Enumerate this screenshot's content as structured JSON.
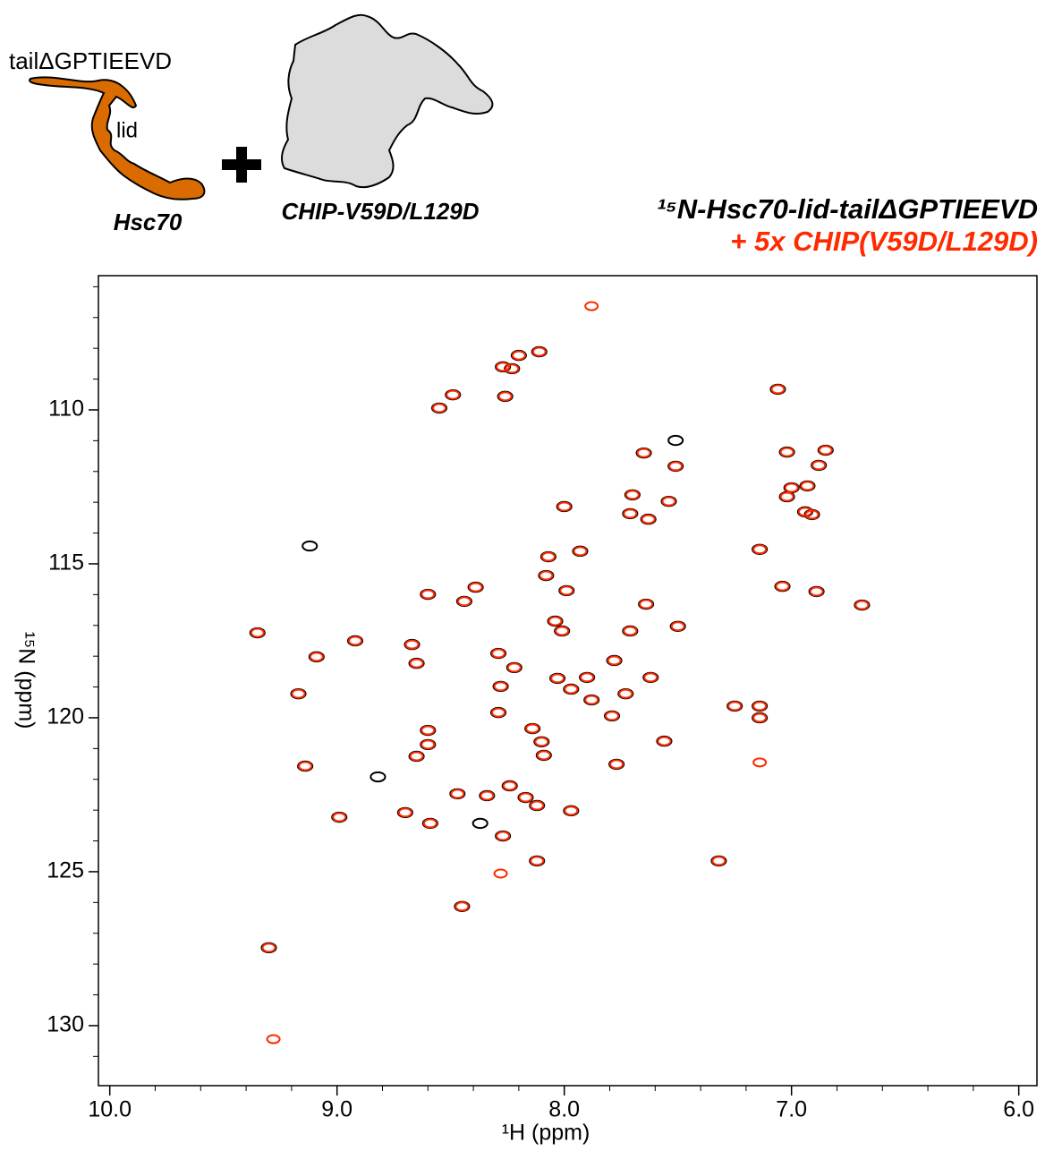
{
  "chart_data": {
    "type": "scatter",
    "annotations": {
      "tail": "tailΔGPTIEEVD",
      "lid": "lid",
      "hsc70": "Hsc70",
      "chip": "CHIP-V59D/L129D"
    },
    "xlabel": "¹H (ppm)",
    "ylabel": "¹⁵N (ppm)",
    "xlim": [
      10.05,
      5.92
    ],
    "ylim": [
      131.95,
      105.64
    ],
    "xticks": [
      {
        "value": 10,
        "label": "10.0"
      },
      {
        "value": 9,
        "label": "9.0"
      },
      {
        "value": 8,
        "label": "8.0"
      },
      {
        "value": 7,
        "label": "7.0"
      },
      {
        "value": 6,
        "label": "6.0"
      }
    ],
    "xminorticks": [
      9.8,
      9.6,
      9.4,
      9.2,
      8.8,
      8.6,
      8.4,
      8.2,
      7.8,
      7.6,
      7.4,
      7.2,
      6.8,
      6.6,
      6.4,
      6.2
    ],
    "yticks": [
      110,
      115,
      120,
      125,
      130
    ],
    "yminorticks": [
      106,
      107,
      108,
      109,
      111,
      112,
      113,
      114,
      116,
      117,
      118,
      119,
      121,
      122,
      123,
      124,
      126,
      127,
      128,
      129,
      131
    ],
    "series": [
      {
        "name": "¹⁵N-Hsc70-lid-tailΔGPTIEEVD",
        "color": "#000000",
        "x": [
          8.11,
          8.2,
          8.27,
          8.23,
          8.49,
          8.55,
          8.26,
          7.06,
          7.51,
          7.02,
          6.85,
          7.65,
          7.51,
          6.88,
          7.7,
          7.0,
          6.93,
          7.54,
          7.71,
          7.63,
          8.0,
          7.02,
          6.94,
          6.91,
          9.12,
          8.07,
          7.93,
          7.14,
          8.08,
          8.39,
          7.99,
          8.6,
          8.44,
          7.04,
          6.89,
          7.64,
          6.69,
          8.04,
          8.01,
          7.71,
          7.5,
          9.35,
          8.92,
          8.67,
          9.09,
          8.65,
          8.29,
          7.78,
          8.22,
          8.03,
          7.9,
          7.73,
          7.62,
          8.28,
          7.97,
          9.17,
          7.88,
          8.29,
          8.14,
          7.79,
          7.14,
          7.25,
          7.14,
          8.6,
          8.6,
          8.1,
          7.56,
          8.65,
          8.09,
          9.14,
          7.77,
          8.82,
          8.24,
          8.47,
          8.34,
          8.17,
          8.12,
          7.97,
          8.99,
          8.7,
          8.59,
          8.27,
          8.12,
          7.32,
          8.45,
          9.3,
          8.37
        ],
        "values": [
          108.11,
          108.23,
          108.6,
          108.66,
          109.51,
          109.94,
          109.56,
          109.33,
          110.99,
          111.37,
          111.31,
          111.4,
          111.83,
          111.8,
          112.76,
          112.53,
          112.47,
          112.97,
          113.37,
          113.55,
          113.14,
          112.82,
          113.31,
          113.4,
          114.42,
          114.77,
          114.59,
          114.53,
          115.38,
          115.76,
          115.87,
          115.99,
          116.22,
          115.73,
          115.9,
          116.31,
          116.34,
          116.86,
          117.18,
          117.18,
          117.03,
          117.24,
          117.5,
          117.62,
          118.02,
          118.23,
          117.91,
          118.14,
          118.37,
          118.72,
          118.69,
          119.22,
          118.69,
          118.98,
          119.07,
          119.22,
          119.42,
          119.83,
          120.35,
          119.94,
          119.62,
          119.62,
          120.0,
          120.41,
          120.87,
          120.78,
          120.76,
          121.25,
          121.22,
          121.57,
          121.51,
          121.92,
          122.21,
          122.47,
          122.53,
          122.59,
          122.85,
          123.02,
          123.23,
          123.08,
          123.43,
          123.84,
          124.65,
          124.65,
          126.13,
          127.47,
          123.43
        ]
      },
      {
        "name": "+ 5x CHIP(V59D/L129D)",
        "color": "#ff2a00",
        "x": [
          7.88,
          8.11,
          8.2,
          8.27,
          8.23,
          8.49,
          8.55,
          8.26,
          7.06,
          7.02,
          6.85,
          7.65,
          7.51,
          6.88,
          7.7,
          7.0,
          6.93,
          7.54,
          7.71,
          7.63,
          8.0,
          7.02,
          6.94,
          6.91,
          8.07,
          7.93,
          7.14,
          8.08,
          8.39,
          7.99,
          8.6,
          8.44,
          7.04,
          6.89,
          7.64,
          6.69,
          8.04,
          8.01,
          7.71,
          7.5,
          9.35,
          8.92,
          8.67,
          9.09,
          8.65,
          8.29,
          7.78,
          8.22,
          8.03,
          7.9,
          7.73,
          7.62,
          8.28,
          7.97,
          9.17,
          7.88,
          8.29,
          8.14,
          7.79,
          7.14,
          7.25,
          7.14,
          8.6,
          8.6,
          8.1,
          7.56,
          8.65,
          8.09,
          9.14,
          7.77,
          7.14,
          8.24,
          8.47,
          8.34,
          8.17,
          8.12,
          7.97,
          8.99,
          8.7,
          8.59,
          8.27,
          8.12,
          7.32,
          8.28,
          8.45,
          9.3,
          9.28
        ],
        "values": [
          106.63,
          108.11,
          108.23,
          108.6,
          108.66,
          109.51,
          109.94,
          109.56,
          109.33,
          111.37,
          111.31,
          111.4,
          111.83,
          111.8,
          112.76,
          112.53,
          112.47,
          112.97,
          113.37,
          113.55,
          113.14,
          112.82,
          113.31,
          113.4,
          114.77,
          114.59,
          114.53,
          115.38,
          115.76,
          115.87,
          115.99,
          116.22,
          115.73,
          115.9,
          116.31,
          116.34,
          116.86,
          117.18,
          117.18,
          117.03,
          117.24,
          117.5,
          117.62,
          118.02,
          118.23,
          117.91,
          118.14,
          118.37,
          118.72,
          118.69,
          119.22,
          118.69,
          118.98,
          119.07,
          119.22,
          119.42,
          119.83,
          120.35,
          119.94,
          119.62,
          119.62,
          120.0,
          120.41,
          120.87,
          120.78,
          120.76,
          121.25,
          121.22,
          121.57,
          121.51,
          121.45,
          122.21,
          122.47,
          122.53,
          122.59,
          122.85,
          123.02,
          123.23,
          123.08,
          123.43,
          123.84,
          124.65,
          124.65,
          125.06,
          126.13,
          127.47,
          130.44
        ]
      }
    ]
  }
}
